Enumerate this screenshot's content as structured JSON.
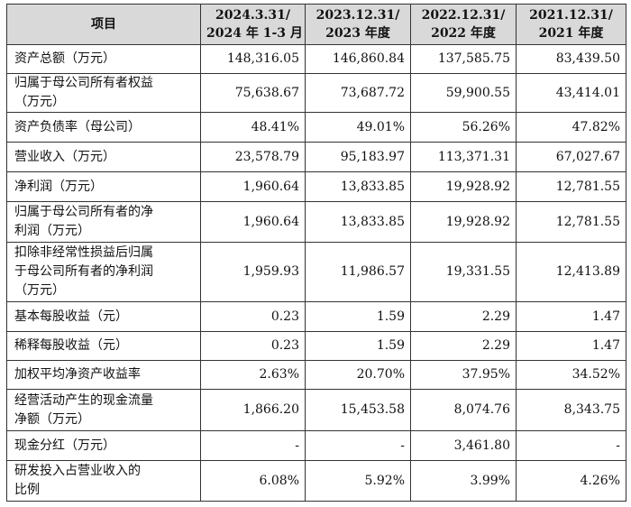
{
  "table": {
    "header": [
      [
        "项目"
      ],
      [
        "2024.3.31/",
        "2024 年 1-3 月"
      ],
      [
        "2023.12.31/",
        "2023 年度"
      ],
      [
        "2022.12.31/",
        "2022 年度"
      ],
      [
        "2021.12.31/",
        "2021 年度"
      ]
    ],
    "rows": [
      [
        [
          "资产总额（万元）"
        ],
        "148,316.05",
        "146,860.84",
        "137,585.75",
        "83,439.50"
      ],
      [
        [
          "归属于母公司所有者权益",
          "（万元）"
        ],
        "75,638.67",
        "73,687.72",
        "59,900.55",
        "43,414.01"
      ],
      [
        [
          "资产负债率（母公司）"
        ],
        "48.41%",
        "49.01%",
        "56.26%",
        "47.82%"
      ],
      [
        [
          "营业收入（万元）"
        ],
        "23,578.79",
        "95,183.97",
        "113,371.31",
        "67,027.67"
      ],
      [
        [
          "净利润（万元）"
        ],
        "1,960.64",
        "13,833.85",
        "19,928.92",
        "12,781.55"
      ],
      [
        [
          "归属于母公司所有者的净",
          "利润（万元）"
        ],
        "1,960.64",
        "13,833.85",
        "19,928.92",
        "12,781.55"
      ],
      [
        [
          "扣除非经常性损益后归属",
          "于母公司所有者的净利润",
          "（万元）"
        ],
        "1,959.93",
        "11,986.57",
        "19,331.55",
        "12,413.89"
      ],
      [
        [
          "基本每股收益（元）"
        ],
        "0.23",
        "1.59",
        "2.29",
        "1.47"
      ],
      [
        [
          "稀释每股收益（元）"
        ],
        "0.23",
        "1.59",
        "2.29",
        "1.47"
      ],
      [
        [
          "加权平均净资产收益率"
        ],
        "2.63%",
        "20.70%",
        "37.95%",
        "34.52%"
      ],
      [
        [
          "经营活动产生的现金流量",
          "净额（万元）"
        ],
        "1,866.20",
        "15,453.58",
        "8,074.76",
        "8,343.75"
      ],
      [
        [
          "现金分红（万元）"
        ],
        "-",
        "-",
        "3,461.80",
        "-"
      ],
      [
        [
          "研发投入占营业收入的",
          "比例"
        ],
        "6.08%",
        "5.92%",
        "3.99%",
        "4.26%"
      ]
    ]
  }
}
